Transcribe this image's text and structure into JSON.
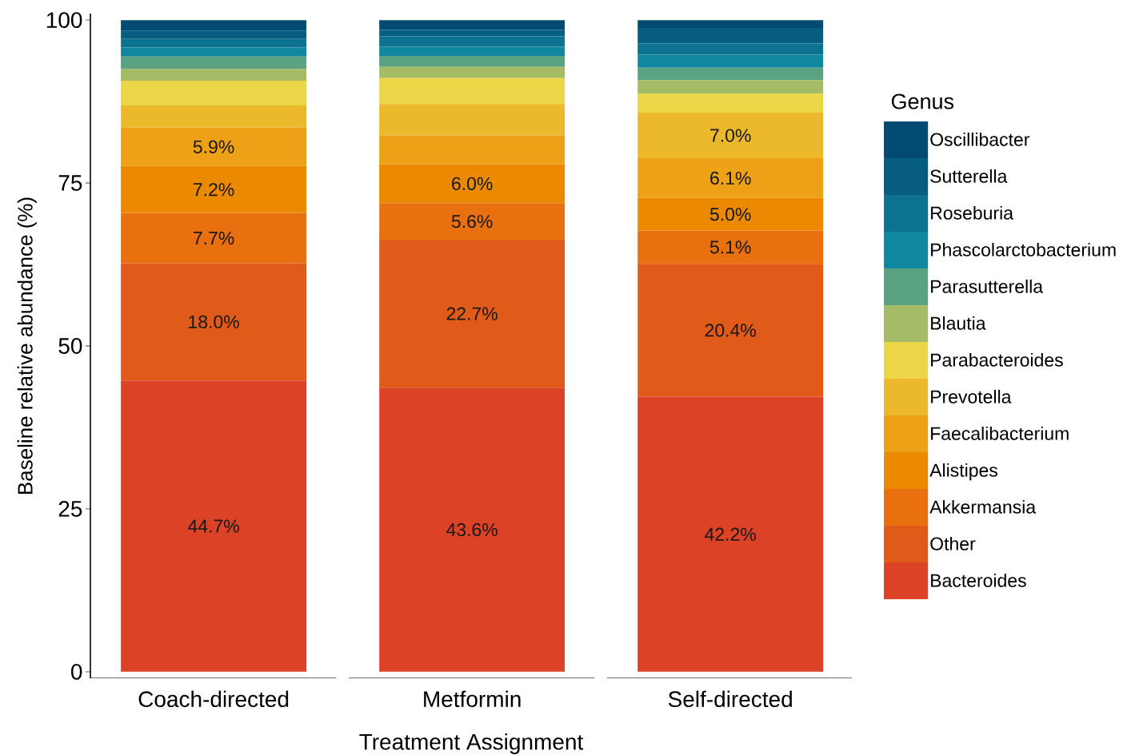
{
  "chart_data": {
    "type": "bar",
    "stacked": true,
    "xlabel": "Treatment Assignment",
    "ylabel": "Baseline relative abundance (%)",
    "legend_title": "Genus",
    "legend": "right",
    "grid": false,
    "categories": [
      "Coach-directed",
      "Metformin",
      "Self-directed"
    ],
    "ylim": [
      -1,
      101
    ],
    "yticks": [
      0,
      25,
      50,
      75,
      100
    ],
    "series": [
      {
        "name": "Bacteroides",
        "color": "#dc4326",
        "values": [
          44.7,
          43.6,
          42.2
        ],
        "value_labels": [
          "44.7%",
          "43.6%",
          "42.2%"
        ]
      },
      {
        "name": "Other",
        "color": "#e05a19",
        "values": [
          18.0,
          22.7,
          20.4
        ],
        "value_labels": [
          "18.0%",
          "22.7%",
          "20.4%"
        ]
      },
      {
        "name": "Akkermansia",
        "color": "#e8700f",
        "values": [
          7.7,
          5.6,
          5.1
        ],
        "value_labels": [
          "7.7%",
          "5.6%",
          "5.1%"
        ]
      },
      {
        "name": "Alistipes",
        "color": "#eb8a00",
        "values": [
          7.2,
          6.0,
          5.0
        ],
        "value_labels": [
          "7.2%",
          "6.0%",
          "5.0%"
        ]
      },
      {
        "name": "Faecalibacterium",
        "color": "#eca117",
        "values": [
          5.9,
          4.4,
          6.1
        ],
        "value_labels": [
          "5.9%",
          null,
          "6.1%"
        ]
      },
      {
        "name": "Prevotella",
        "color": "#ebb92b",
        "values": [
          3.4,
          4.8,
          7.0
        ],
        "value_labels": [
          null,
          null,
          "7.0%"
        ]
      },
      {
        "name": "Parabacteroides",
        "color": "#ebd647",
        "values": [
          3.8,
          4.0,
          2.9
        ],
        "value_labels": [
          null,
          null,
          null
        ]
      },
      {
        "name": "Blautia",
        "color": "#a5bb65",
        "values": [
          1.8,
          1.7,
          2.1
        ],
        "value_labels": [
          null,
          null,
          null
        ]
      },
      {
        "name": "Parasutterella",
        "color": "#5aa282",
        "values": [
          1.9,
          1.7,
          1.9
        ],
        "value_labels": [
          null,
          null,
          null
        ]
      },
      {
        "name": "Phascolarctobacterium",
        "color": "#10879f",
        "values": [
          1.4,
          1.4,
          2.0
        ],
        "value_labels": [
          null,
          null,
          null
        ]
      },
      {
        "name": "Roseburia",
        "color": "#0c728d",
        "values": [
          1.3,
          1.6,
          1.7
        ],
        "value_labels": [
          null,
          null,
          null
        ]
      },
      {
        "name": "Sutterella",
        "color": "#065d7e",
        "values": [
          1.3,
          1.0,
          2.4
        ],
        "value_labels": [
          null,
          null,
          null
        ]
      },
      {
        "name": "Oscillibacter",
        "color": "#014a72",
        "values": [
          1.6,
          1.5,
          1.2
        ],
        "value_labels": [
          null,
          null,
          null
        ]
      }
    ]
  }
}
